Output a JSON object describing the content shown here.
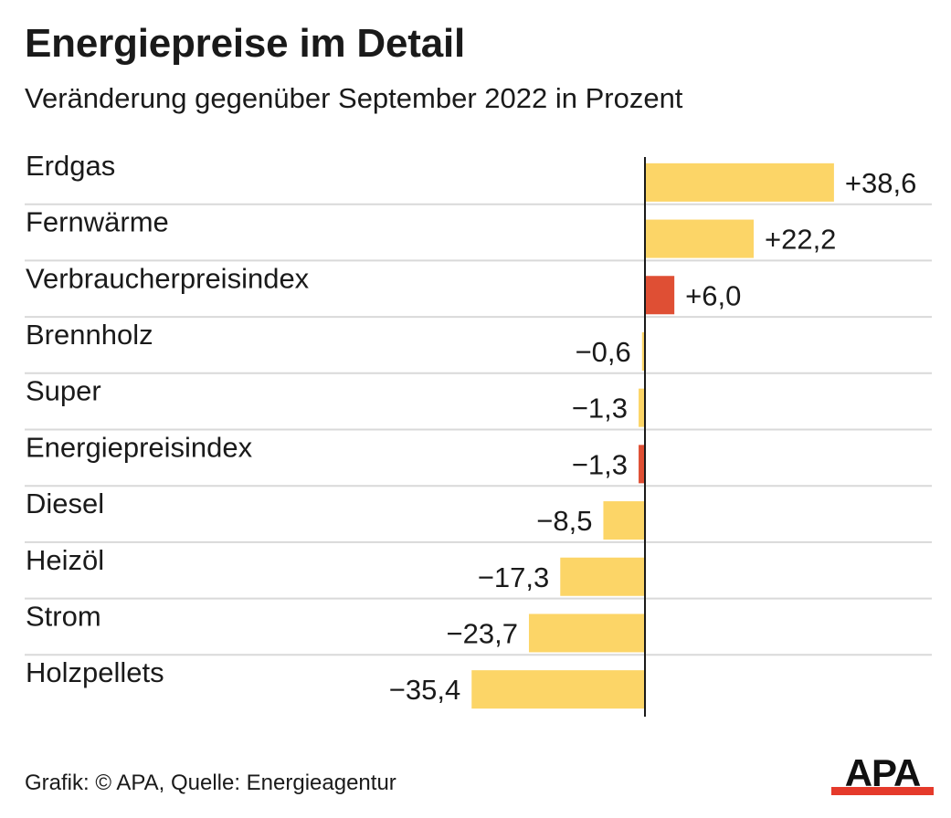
{
  "header": {
    "title": "Energiepreise im Detail",
    "subtitle": "Veränderung gegenüber September 2022 in Prozent"
  },
  "footer": {
    "credit": "Grafik: © APA, Quelle: Energieagentur"
  },
  "logo": {
    "text": "APA",
    "text_color": "#111111",
    "bar_color": "#e53a2b"
  },
  "colors": {
    "bar_default": "#fcd567",
    "bar_highlight": "#df4f34",
    "separator": "#d9d9d9",
    "axis": "#1a1a1a",
    "text": "#1a1a1a"
  },
  "chart_data": {
    "type": "bar",
    "orientation": "horizontal",
    "categories": [
      "Erdgas",
      "Fernwärme",
      "Verbraucherpreisindex",
      "Brennholz",
      "Super",
      "Energiepreisindex",
      "Diesel",
      "Heizöl",
      "Strom",
      "Holzpellets"
    ],
    "values": [
      38.6,
      22.2,
      6.0,
      -0.6,
      -1.3,
      -1.3,
      -8.5,
      -17.3,
      -23.7,
      -35.4
    ],
    "value_labels": [
      "+38,6",
      "+22,2",
      "+6,0",
      "−0,6",
      "−1,3",
      "−1,3",
      "−8,5",
      "−17,3",
      "−23,7",
      "−35,4"
    ],
    "highlighted": [
      "Verbraucherpreisindex",
      "Energiepreisindex"
    ],
    "title": "Energiepreise im Detail",
    "subtitle": "Veränderung gegenüber September 2022 in Prozent",
    "xlabel": "",
    "ylabel": "",
    "xlim": [
      -35.4,
      38.6
    ],
    "grid": false,
    "legend": "none"
  }
}
